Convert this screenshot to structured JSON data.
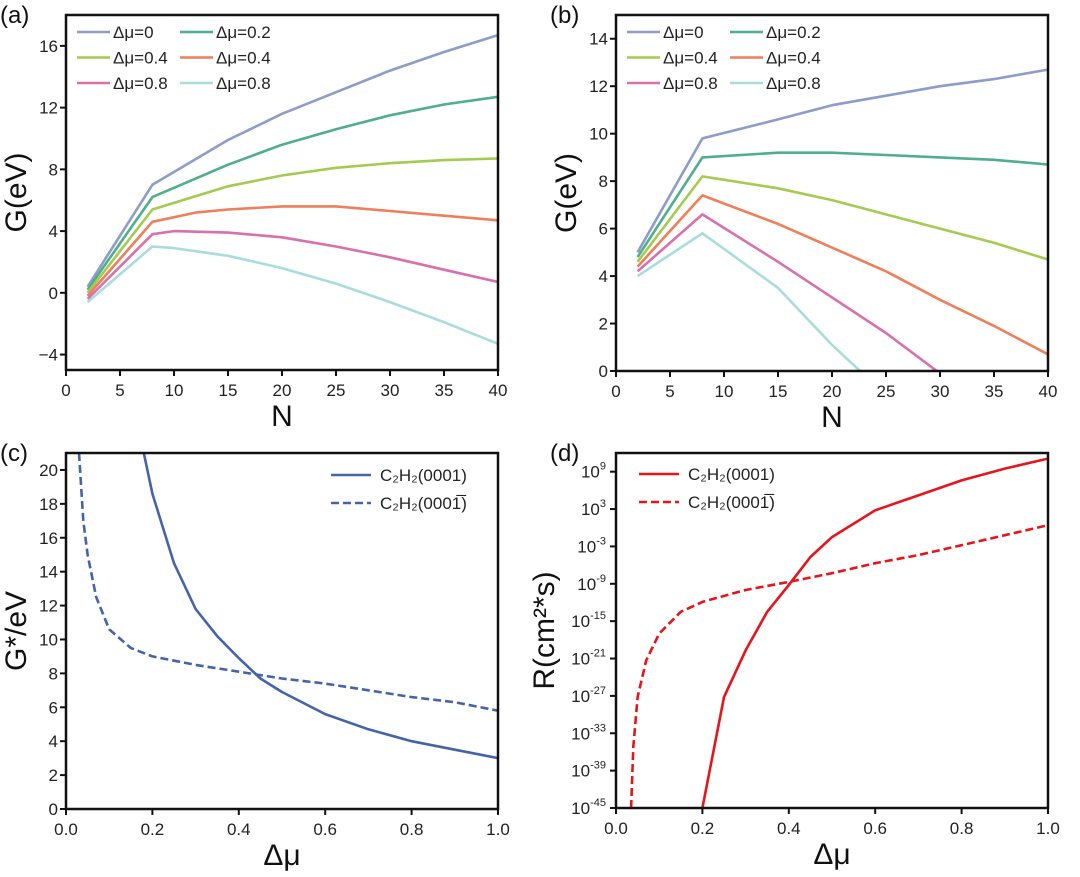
{
  "chart_data": [
    {
      "panel_label": "(a)",
      "type": "line",
      "xlabel": "N",
      "ylabel": "G(eV)",
      "xlim": [
        0,
        40
      ],
      "ylim": [
        -5,
        18
      ],
      "xticks": [
        0,
        5,
        10,
        15,
        20,
        25,
        30,
        35,
        40
      ],
      "yticks": [
        -4,
        0,
        4,
        8,
        12,
        16
      ],
      "legend_position": "top-left",
      "series": [
        {
          "name": "Δμ=0",
          "color": "#8d9cc9",
          "x": [
            2,
            8,
            15,
            20,
            25,
            30,
            35,
            40
          ],
          "y": [
            0.4,
            7.0,
            9.9,
            11.6,
            13.0,
            14.4,
            15.6,
            16.7
          ]
        },
        {
          "name": "Δμ=0.2",
          "color": "#4fae8c",
          "x": [
            2,
            8,
            15,
            20,
            25,
            30,
            35,
            40
          ],
          "y": [
            0.2,
            6.2,
            8.3,
            9.6,
            10.6,
            11.5,
            12.2,
            12.7
          ]
        },
        {
          "name": "Δμ=0.4",
          "color": "#a4cb4f",
          "x": [
            2,
            8,
            15,
            20,
            25,
            30,
            35,
            40
          ],
          "y": [
            0.0,
            5.4,
            6.9,
            7.6,
            8.1,
            8.4,
            8.6,
            8.7
          ]
        },
        {
          "name": "Δμ=0.4",
          "color": "#ef7f5b",
          "x": [
            2,
            8,
            12,
            15,
            20,
            25,
            30,
            35,
            40
          ],
          "y": [
            -0.2,
            4.6,
            5.2,
            5.4,
            5.6,
            5.6,
            5.3,
            5.0,
            4.7
          ]
        },
        {
          "name": "Δμ=0.8",
          "color": "#d970ae",
          "x": [
            2,
            8,
            10,
            15,
            20,
            25,
            30,
            35,
            40
          ],
          "y": [
            -0.4,
            3.8,
            4.0,
            3.9,
            3.6,
            3.0,
            2.3,
            1.5,
            0.7
          ]
        },
        {
          "name": "Δμ=0.8",
          "color": "#a9dcdc",
          "x": [
            2,
            8,
            10,
            15,
            20,
            25,
            30,
            35,
            40
          ],
          "y": [
            -0.6,
            3.0,
            2.9,
            2.4,
            1.6,
            0.6,
            -0.6,
            -1.9,
            -3.3
          ]
        }
      ]
    },
    {
      "panel_label": "(b)",
      "type": "line",
      "xlabel": "N",
      "ylabel": "G(eV)",
      "xlim": [
        0,
        40
      ],
      "ylim": [
        0,
        15
      ],
      "xticks": [
        0,
        5,
        10,
        15,
        20,
        25,
        30,
        35,
        40
      ],
      "yticks": [
        0,
        2,
        4,
        6,
        8,
        10,
        12,
        14
      ],
      "legend_position": "top-left",
      "series": [
        {
          "name": "Δμ=0",
          "color": "#8d9cc9",
          "x": [
            2,
            8,
            15,
            20,
            25,
            30,
            35,
            40
          ],
          "y": [
            5.0,
            9.8,
            10.6,
            11.2,
            11.6,
            12.0,
            12.3,
            12.7
          ]
        },
        {
          "name": "Δμ=0.2",
          "color": "#4fae8c",
          "x": [
            2,
            8,
            15,
            20,
            25,
            30,
            35,
            40
          ],
          "y": [
            4.8,
            9.0,
            9.2,
            9.2,
            9.1,
            9.0,
            8.9,
            8.7
          ]
        },
        {
          "name": "Δμ=0.4",
          "color": "#a4cb4f",
          "x": [
            2,
            8,
            15,
            20,
            25,
            30,
            35,
            40
          ],
          "y": [
            4.6,
            8.2,
            7.7,
            7.2,
            6.6,
            6.0,
            5.4,
            4.7
          ]
        },
        {
          "name": "Δμ=0.4",
          "color": "#ef7f5b",
          "x": [
            2,
            8,
            15,
            20,
            25,
            30,
            35,
            40
          ],
          "y": [
            4.4,
            7.4,
            6.2,
            5.2,
            4.2,
            3.0,
            1.9,
            0.7
          ]
        },
        {
          "name": "Δμ=0.8",
          "color": "#d970ae",
          "x": [
            2,
            8,
            15,
            20,
            25,
            29.7
          ],
          "y": [
            4.2,
            6.6,
            4.6,
            3.1,
            1.6,
            0
          ]
        },
        {
          "name": "Δμ=0.8",
          "color": "#a9dcdc",
          "x": [
            2,
            8,
            15,
            20,
            22.6
          ],
          "y": [
            4.0,
            5.8,
            3.5,
            1.1,
            0
          ]
        }
      ]
    },
    {
      "panel_label": "(c)",
      "type": "line",
      "xlabel": "Δμ",
      "ylabel": "G*/eV",
      "xlim": [
        0,
        1
      ],
      "ylim": [
        0,
        21
      ],
      "xticks": [
        "0.0",
        "0.2",
        "0.4",
        "0.6",
        "0.8",
        "1.0"
      ],
      "yticks": [
        0,
        2,
        4,
        6,
        8,
        10,
        12,
        14,
        16,
        18,
        20
      ],
      "legend_position": "top-right",
      "series": [
        {
          "name": "C₂H₂(0001)",
          "color": "#4563a8",
          "dash": false,
          "x": [
            0.18,
            0.2,
            0.25,
            0.3,
            0.35,
            0.4,
            0.45,
            0.5,
            0.6,
            0.7,
            0.8,
            0.9,
            1.0
          ],
          "y": [
            21,
            18.6,
            14.5,
            11.8,
            10.2,
            8.9,
            7.7,
            6.9,
            5.6,
            4.7,
            4.0,
            3.5,
            3.0
          ]
        },
        {
          "name": "C₂H₂(0001̅)",
          "color": "#4563a8",
          "dash": true,
          "x": [
            0.03,
            0.04,
            0.05,
            0.07,
            0.1,
            0.15,
            0.2,
            0.3,
            0.4,
            0.5,
            0.6,
            0.7,
            0.8,
            0.9,
            1.0
          ],
          "y": [
            21,
            17,
            15,
            12.5,
            10.6,
            9.5,
            9.0,
            8.5,
            8.1,
            7.7,
            7.4,
            7.0,
            6.6,
            6.3,
            5.8
          ]
        }
      ]
    },
    {
      "panel_label": "(d)",
      "type": "line",
      "xlabel": "Δμ",
      "ylabel": "R(cm²*s)",
      "yscale": "log",
      "xlim": [
        0,
        1
      ],
      "ylim_exponent": [
        -45,
        12
      ],
      "xticks": [
        "0.0",
        "0.2",
        "0.4",
        "0.6",
        "0.8",
        "1.0"
      ],
      "yticks_exponent": [
        -45,
        -39,
        -33,
        -27,
        -21,
        -15,
        -9,
        -3,
        3,
        9
      ],
      "legend_position": "top-left",
      "series": [
        {
          "name": "C₂H₂(0001)",
          "color": "#e8141c",
          "dash": false,
          "x": [
            0.2,
            0.25,
            0.3,
            0.35,
            0.4,
            0.45,
            0.5,
            0.6,
            0.7,
            0.8,
            0.9,
            1.0
          ],
          "y_exponent": [
            -45,
            -27.2,
            -19.7,
            -13.5,
            -9.2,
            -4.7,
            -1.5,
            2.8,
            5.2,
            7.6,
            9.5,
            11.1
          ]
        },
        {
          "name": "C₂H₂(0001̅)",
          "color": "#e8141c",
          "dash": true,
          "x": [
            0.035,
            0.04,
            0.05,
            0.07,
            0.1,
            0.15,
            0.2,
            0.3,
            0.4,
            0.5,
            0.6,
            0.7,
            0.8,
            0.9,
            1.0
          ],
          "y_exponent": [
            -45,
            -35.2,
            -27.2,
            -21.3,
            -17,
            -13.5,
            -11.9,
            -10,
            -8.7,
            -7.3,
            -5.7,
            -4.4,
            -2.8,
            -1.2,
            0.4
          ]
        }
      ]
    }
  ]
}
